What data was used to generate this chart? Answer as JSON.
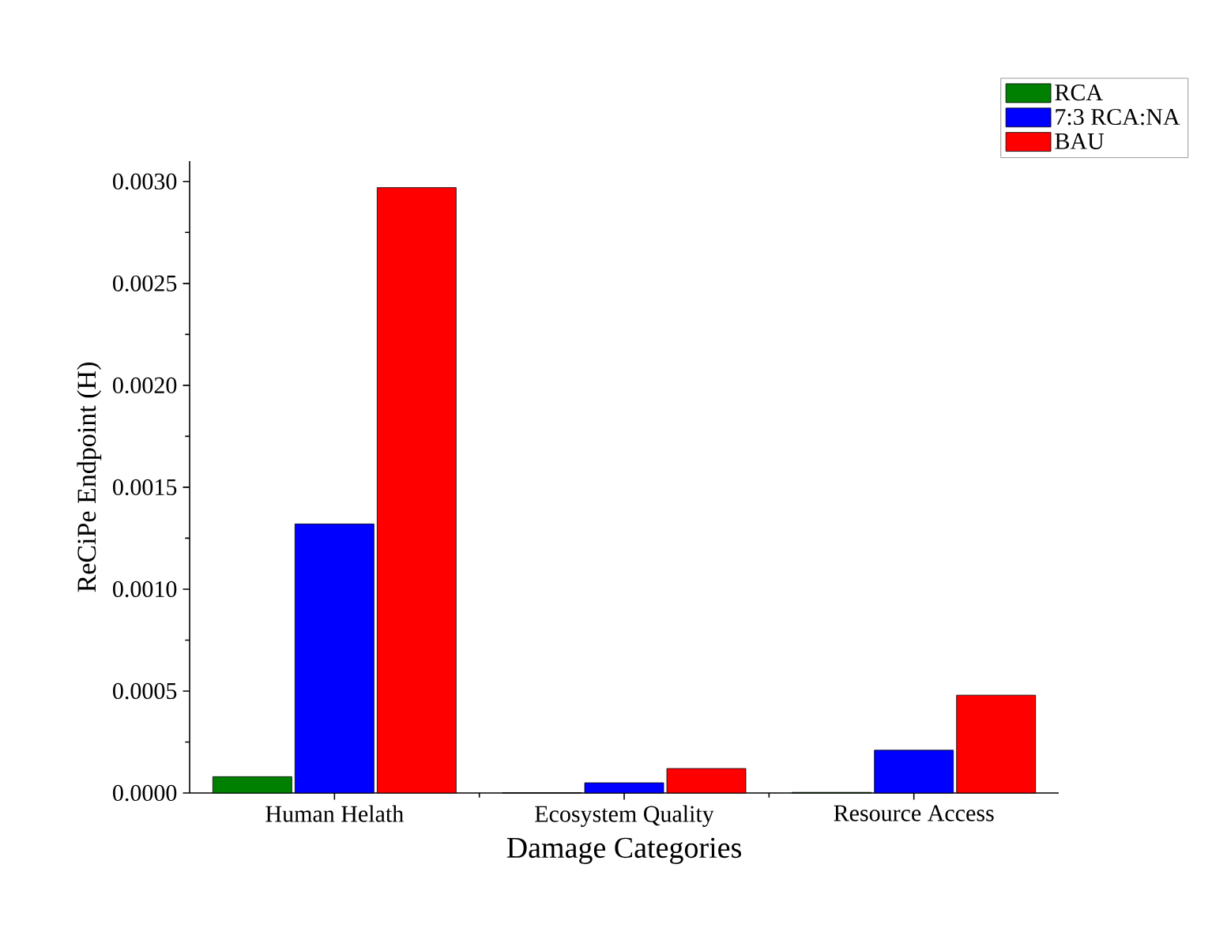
{
  "chart_data": {
    "type": "bar",
    "xlabel": "Damage Categories",
    "ylabel": "ReCiPe Endpoint (H)",
    "categories": [
      "Human Helath",
      "Ecosystem Quality",
      "Resource Access"
    ],
    "series": [
      {
        "name": "RCA",
        "color": "#008000",
        "values": [
          8e-05,
          1e-06,
          3e-06
        ]
      },
      {
        "name": "7:3 RCA:NA",
        "color": "#0000ff",
        "values": [
          0.00132,
          5e-05,
          0.00021
        ]
      },
      {
        "name": "BAU",
        "color": "#ff0000",
        "values": [
          0.00297,
          0.00012,
          0.00048
        ]
      }
    ],
    "ylim": [
      0,
      0.0031
    ],
    "yticks": [
      {
        "value": 0,
        "label": "0.0000"
      },
      {
        "value": 0.0005,
        "label": "0.0005"
      },
      {
        "value": 0.001,
        "label": "0.0010"
      },
      {
        "value": 0.0015,
        "label": "0.0015"
      },
      {
        "value": 0.002,
        "label": "0.0020"
      },
      {
        "value": 0.0025,
        "label": "0.0025"
      },
      {
        "value": 0.003,
        "label": "0.0030"
      }
    ],
    "grid": false,
    "legend": "top right"
  }
}
